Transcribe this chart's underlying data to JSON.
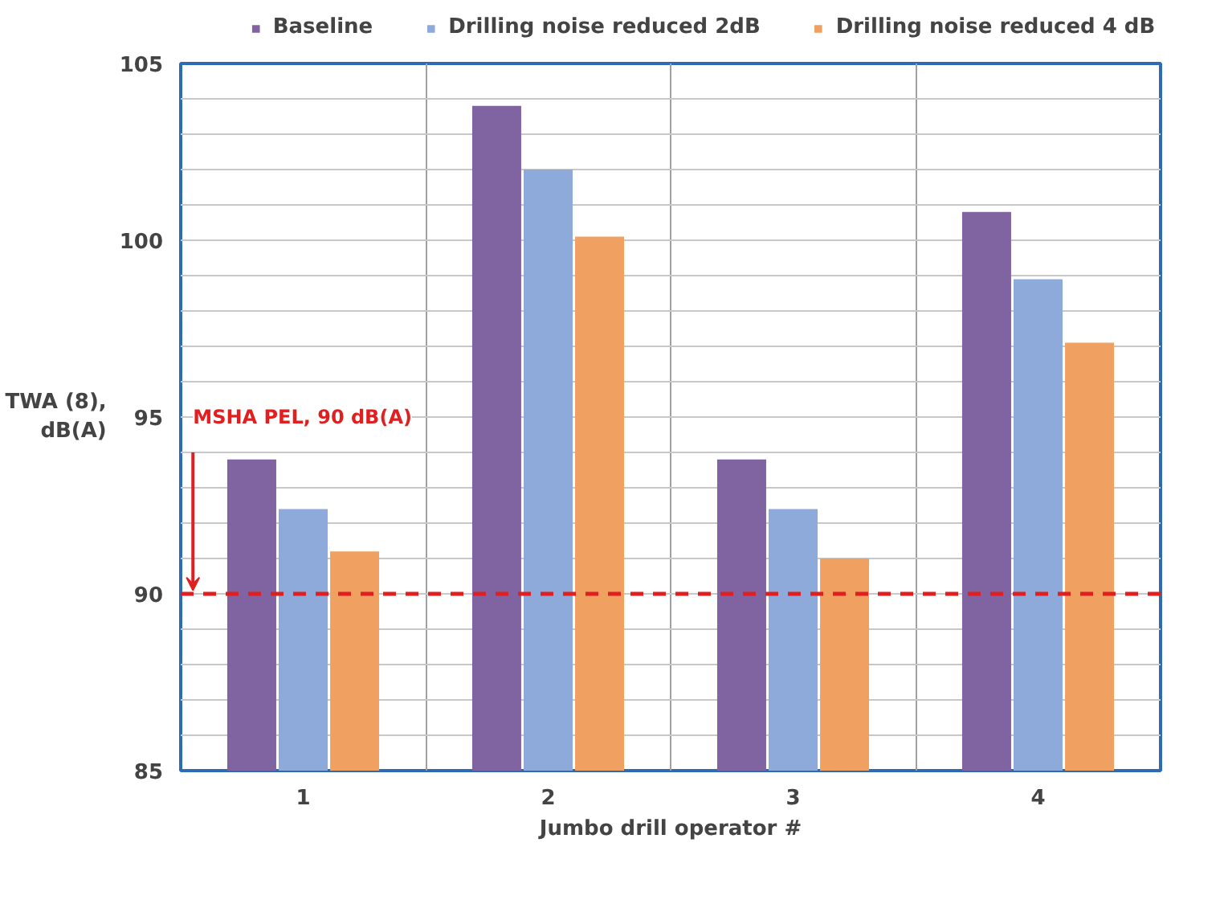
{
  "chart_data": {
    "type": "bar",
    "xlabel": "Jumbo drill operator #",
    "ylabel": "TWA (8),\ndB(A)",
    "categories": [
      "1",
      "2",
      "3",
      "4"
    ],
    "series": [
      {
        "name": "Baseline",
        "color": "#8064a2",
        "values": [
          93.8,
          103.8,
          93.8,
          100.8
        ]
      },
      {
        "name": "Drilling noise reduced 2dB",
        "color": "#8eaadb",
        "values": [
          92.4,
          102.0,
          92.4,
          98.9
        ]
      },
      {
        "name": "Drilling noise reduced 4 dB",
        "color": "#f0a060",
        "values": [
          91.2,
          100.1,
          91.0,
          97.1
        ]
      }
    ],
    "ylim": [
      85,
      105
    ],
    "yticks": [
      85,
      {
        "value": 86,
        "label": null
      },
      {
        "value": 87,
        "label": null
      },
      {
        "value": 88,
        "label": null
      },
      {
        "value": 89,
        "label": null
      },
      90,
      {
        "value": 91,
        "label": null
      },
      {
        "value": 92,
        "label": null
      },
      {
        "value": 93,
        "label": null
      },
      {
        "value": 94,
        "label": null
      },
      95,
      {
        "value": 96,
        "label": null
      },
      {
        "value": 97,
        "label": null
      },
      {
        "value": 98,
        "label": null
      },
      {
        "value": 99,
        "label": null
      },
      100,
      {
        "value": 101,
        "label": null
      },
      {
        "value": 102,
        "label": null
      },
      {
        "value": 103,
        "label": null
      },
      {
        "value": 104,
        "label": null
      },
      105
    ],
    "ref_lines": [
      {
        "axis": "y",
        "value": 90,
        "label": "MSHA PEL, 90 dB(A)",
        "color": "#e02020",
        "line_style": "dashed"
      }
    ],
    "grid": true,
    "legend": "top"
  }
}
